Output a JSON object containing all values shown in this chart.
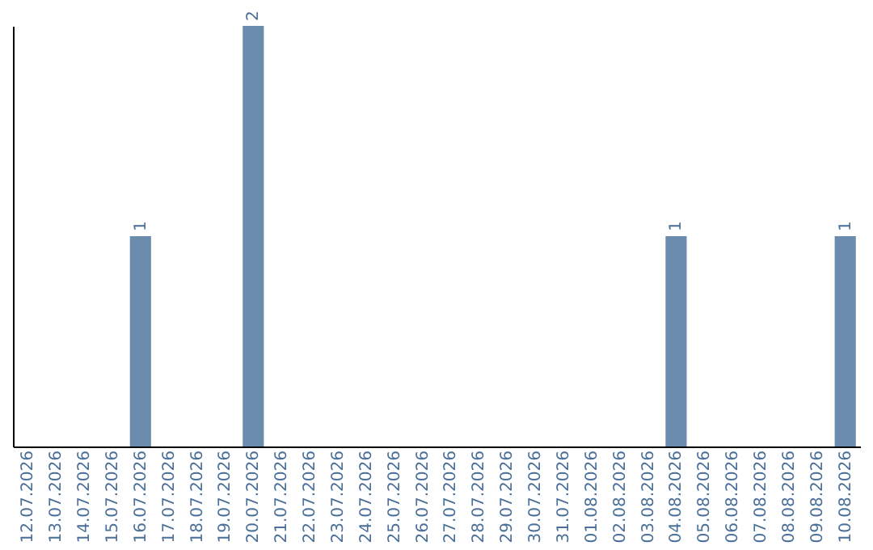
{
  "chart_data": {
    "type": "bar",
    "categories": [
      "12.07.2026",
      "13.07.2026",
      "14.07.2026",
      "15.07.2026",
      "16.07.2026",
      "17.07.2026",
      "18.07.2026",
      "19.07.2026",
      "20.07.2026",
      "21.07.2026",
      "22.07.2026",
      "23.07.2026",
      "24.07.2026",
      "25.07.2026",
      "26.07.2026",
      "27.07.2026",
      "28.07.2026",
      "29.07.2026",
      "30.07.2026",
      "31.07.2026",
      "01.08.2026",
      "02.08.2026",
      "03.08.2026",
      "04.08.2026",
      "05.08.2026",
      "06.08.2026",
      "07.08.2026",
      "08.08.2026",
      "09.08.2026",
      "10.08.2026"
    ],
    "values": [
      0,
      0,
      0,
      0,
      1,
      0,
      0,
      0,
      2,
      0,
      0,
      0,
      0,
      0,
      0,
      0,
      0,
      0,
      0,
      0,
      0,
      0,
      0,
      1,
      0,
      0,
      0,
      0,
      0,
      1
    ],
    "value_labels": [
      null,
      null,
      null,
      null,
      "1",
      null,
      null,
      null,
      "2",
      null,
      null,
      null,
      null,
      null,
      null,
      null,
      null,
      null,
      null,
      null,
      null,
      null,
      null,
      "1",
      null,
      null,
      null,
      null,
      null,
      "1"
    ],
    "color": "#6b8cac",
    "tick_labels": "x",
    "grid": false
  }
}
